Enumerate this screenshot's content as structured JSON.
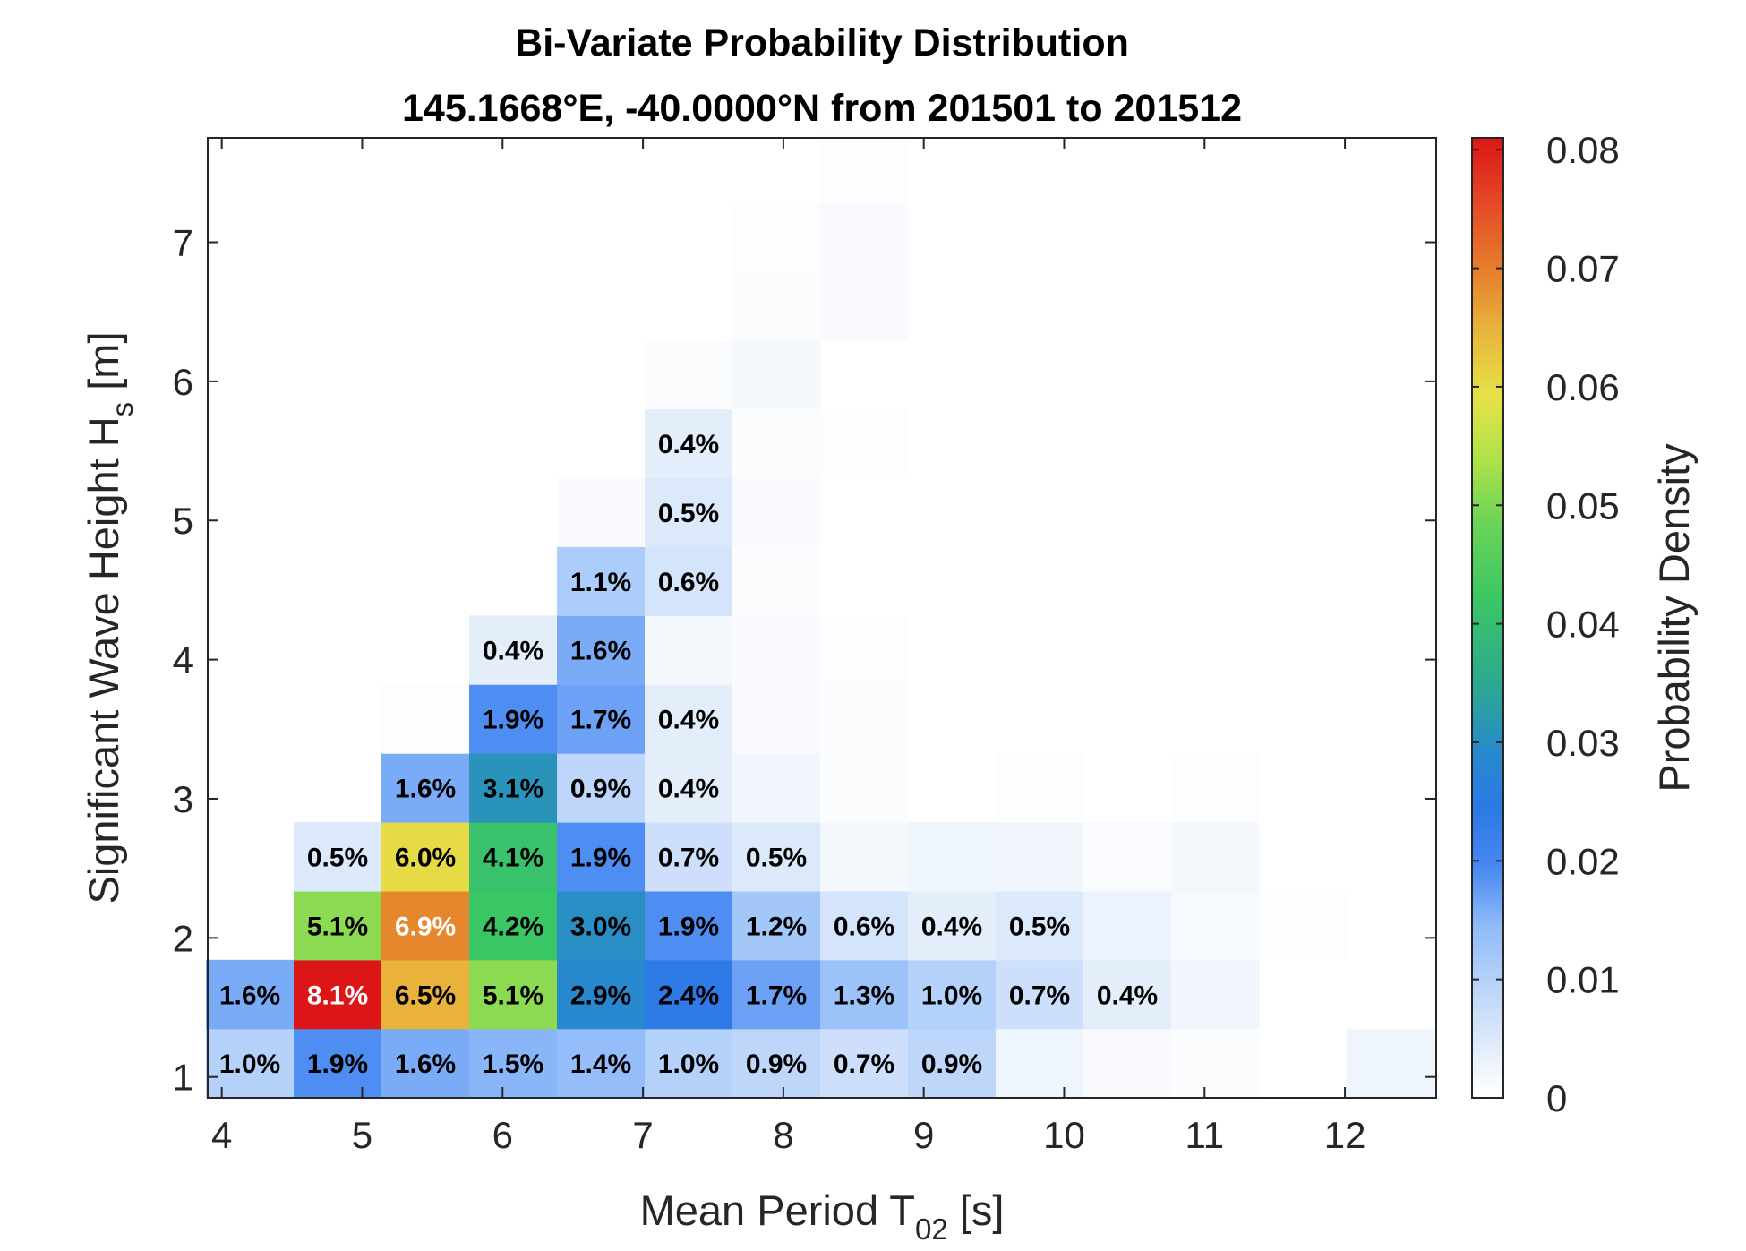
{
  "title_line1": "Bi-Variate Probability Distribution",
  "title_line2": "145.1668°E, -40.0000°N from 201501 to 201512",
  "xlabel_main": "Mean Period T",
  "xlabel_sub": "02",
  "xlabel_unit": " [s]",
  "ylabel_main": "Significant Wave Height H",
  "ylabel_sub": "s",
  "ylabel_unit": " [m]",
  "colorbar_label": "Probability Density",
  "chart_data": {
    "type": "heatmap",
    "title": "Bi-Variate Probability Distribution\n145.1668°E, -40.0000°N from 201501 to 201512",
    "xlabel": "Mean Period T02 [s]",
    "ylabel": "Significant Wave Height Hs [m]",
    "colorbar_label": "Probability Density",
    "xlim": [
      3.9,
      12.65
    ],
    "ylim": [
      0.85,
      7.75
    ],
    "x_ticks": [
      4,
      5,
      6,
      7,
      8,
      9,
      10,
      11,
      12
    ],
    "y_ticks": [
      1,
      2,
      3,
      4,
      5,
      6,
      7
    ],
    "colorbar_ticks": [
      0,
      0.01,
      0.02,
      0.03,
      0.04,
      0.05,
      0.06,
      0.07,
      0.08
    ],
    "colorbar_range": [
      0,
      0.081
    ],
    "x_bin_width": 0.625,
    "y_bin_height": 0.495,
    "x_bin_centers": [
      4.2,
      4.825,
      5.45,
      6.075,
      6.7,
      7.325,
      7.95,
      8.575,
      9.2,
      9.825,
      10.45,
      11.075,
      11.7,
      12.325
    ],
    "y_bin_centers": [
      1.1,
      1.595,
      2.09,
      2.585,
      3.08,
      3.575,
      4.07,
      4.565,
      5.06,
      5.555,
      6.05,
      6.545,
      7.04,
      7.535
    ],
    "cells": [
      {
        "x": 4.2,
        "y": 1.1,
        "value": 0.01,
        "label": "1.0%"
      },
      {
        "x": 4.825,
        "y": 1.1,
        "value": 0.019,
        "label": "1.9%"
      },
      {
        "x": 5.45,
        "y": 1.1,
        "value": 0.016,
        "label": "1.6%"
      },
      {
        "x": 6.075,
        "y": 1.1,
        "value": 0.015,
        "label": "1.5%"
      },
      {
        "x": 6.7,
        "y": 1.1,
        "value": 0.014,
        "label": "1.4%"
      },
      {
        "x": 7.325,
        "y": 1.1,
        "value": 0.01,
        "label": "1.0%"
      },
      {
        "x": 7.95,
        "y": 1.1,
        "value": 0.009,
        "label": "0.9%"
      },
      {
        "x": 8.575,
        "y": 1.1,
        "value": 0.007,
        "label": "0.7%"
      },
      {
        "x": 9.2,
        "y": 1.1,
        "value": 0.009,
        "label": "0.9%"
      },
      {
        "x": 9.825,
        "y": 1.1,
        "value": 0.0025,
        "label": ""
      },
      {
        "x": 10.45,
        "y": 1.1,
        "value": 0.0012,
        "label": ""
      },
      {
        "x": 11.075,
        "y": 1.1,
        "value": 0.0008,
        "label": ""
      },
      {
        "x": 12.325,
        "y": 1.1,
        "value": 0.0025,
        "label": ""
      },
      {
        "x": 4.2,
        "y": 1.595,
        "value": 0.016,
        "label": "1.6%"
      },
      {
        "x": 4.825,
        "y": 1.595,
        "value": 0.081,
        "label": "8.1%"
      },
      {
        "x": 5.45,
        "y": 1.595,
        "value": 0.065,
        "label": "6.5%"
      },
      {
        "x": 6.075,
        "y": 1.595,
        "value": 0.051,
        "label": "5.1%"
      },
      {
        "x": 6.7,
        "y": 1.595,
        "value": 0.029,
        "label": "2.9%"
      },
      {
        "x": 7.325,
        "y": 1.595,
        "value": 0.024,
        "label": "2.4%"
      },
      {
        "x": 7.95,
        "y": 1.595,
        "value": 0.017,
        "label": "1.7%"
      },
      {
        "x": 8.575,
        "y": 1.595,
        "value": 0.013,
        "label": "1.3%"
      },
      {
        "x": 9.2,
        "y": 1.595,
        "value": 0.01,
        "label": "1.0%"
      },
      {
        "x": 9.825,
        "y": 1.595,
        "value": 0.007,
        "label": "0.7%"
      },
      {
        "x": 10.45,
        "y": 1.595,
        "value": 0.004,
        "label": "0.4%"
      },
      {
        "x": 11.075,
        "y": 1.595,
        "value": 0.0022,
        "label": ""
      },
      {
        "x": 4.825,
        "y": 2.09,
        "value": 0.051,
        "label": "5.1%"
      },
      {
        "x": 5.45,
        "y": 2.09,
        "value": 0.069,
        "label": "6.9%"
      },
      {
        "x": 6.075,
        "y": 2.09,
        "value": 0.042,
        "label": "4.2%"
      },
      {
        "x": 6.7,
        "y": 2.09,
        "value": 0.03,
        "label": "3.0%"
      },
      {
        "x": 7.325,
        "y": 2.09,
        "value": 0.019,
        "label": "1.9%"
      },
      {
        "x": 7.95,
        "y": 2.09,
        "value": 0.012,
        "label": "1.2%"
      },
      {
        "x": 8.575,
        "y": 2.09,
        "value": 0.006,
        "label": "0.6%"
      },
      {
        "x": 9.2,
        "y": 2.09,
        "value": 0.004,
        "label": "0.4%"
      },
      {
        "x": 9.825,
        "y": 2.09,
        "value": 0.005,
        "label": "0.5%"
      },
      {
        "x": 10.45,
        "y": 2.09,
        "value": 0.0028,
        "label": ""
      },
      {
        "x": 11.075,
        "y": 2.09,
        "value": 0.0015,
        "label": ""
      },
      {
        "x": 11.7,
        "y": 2.09,
        "value": 0.0004,
        "label": ""
      },
      {
        "x": 4.825,
        "y": 2.585,
        "value": 0.005,
        "label": "0.5%"
      },
      {
        "x": 5.45,
        "y": 2.585,
        "value": 0.06,
        "label": "6.0%"
      },
      {
        "x": 6.075,
        "y": 2.585,
        "value": 0.041,
        "label": "4.1%"
      },
      {
        "x": 6.7,
        "y": 2.585,
        "value": 0.019,
        "label": "1.9%"
      },
      {
        "x": 7.325,
        "y": 2.585,
        "value": 0.007,
        "label": "0.7%"
      },
      {
        "x": 7.95,
        "y": 2.585,
        "value": 0.005,
        "label": "0.5%"
      },
      {
        "x": 8.575,
        "y": 2.585,
        "value": 0.0018,
        "label": ""
      },
      {
        "x": 9.2,
        "y": 2.585,
        "value": 0.0025,
        "label": ""
      },
      {
        "x": 9.825,
        "y": 2.585,
        "value": 0.0022,
        "label": ""
      },
      {
        "x": 10.45,
        "y": 2.585,
        "value": 0.0009,
        "label": ""
      },
      {
        "x": 11.075,
        "y": 2.585,
        "value": 0.0018,
        "label": ""
      },
      {
        "x": 5.45,
        "y": 3.08,
        "value": 0.016,
        "label": "1.6%"
      },
      {
        "x": 6.075,
        "y": 3.08,
        "value": 0.031,
        "label": "3.1%"
      },
      {
        "x": 6.7,
        "y": 3.08,
        "value": 0.009,
        "label": "0.9%"
      },
      {
        "x": 7.325,
        "y": 3.08,
        "value": 0.004,
        "label": "0.4%"
      },
      {
        "x": 7.95,
        "y": 3.08,
        "value": 0.0022,
        "label": ""
      },
      {
        "x": 8.575,
        "y": 3.08,
        "value": 0.0008,
        "label": ""
      },
      {
        "x": 9.825,
        "y": 3.08,
        "value": 0.0006,
        "label": ""
      },
      {
        "x": 11.075,
        "y": 3.08,
        "value": 0.0006,
        "label": ""
      },
      {
        "x": 5.45,
        "y": 3.575,
        "value": 0.0006,
        "label": ""
      },
      {
        "x": 6.075,
        "y": 3.575,
        "value": 0.019,
        "label": "1.9%"
      },
      {
        "x": 6.7,
        "y": 3.575,
        "value": 0.017,
        "label": "1.7%"
      },
      {
        "x": 7.325,
        "y": 3.575,
        "value": 0.004,
        "label": "0.4%"
      },
      {
        "x": 7.95,
        "y": 3.575,
        "value": 0.0012,
        "label": ""
      },
      {
        "x": 8.575,
        "y": 3.575,
        "value": 0.0008,
        "label": ""
      },
      {
        "x": 6.075,
        "y": 4.07,
        "value": 0.004,
        "label": "0.4%"
      },
      {
        "x": 6.7,
        "y": 4.07,
        "value": 0.016,
        "label": "1.6%"
      },
      {
        "x": 7.325,
        "y": 4.07,
        "value": 0.0018,
        "label": ""
      },
      {
        "x": 7.95,
        "y": 4.07,
        "value": 0.0012,
        "label": ""
      },
      {
        "x": 8.575,
        "y": 4.07,
        "value": 0.0004,
        "label": ""
      },
      {
        "x": 6.7,
        "y": 4.565,
        "value": 0.011,
        "label": "1.1%"
      },
      {
        "x": 7.325,
        "y": 4.565,
        "value": 0.006,
        "label": "0.6%"
      },
      {
        "x": 7.95,
        "y": 4.565,
        "value": 0.0008,
        "label": ""
      },
      {
        "x": 6.7,
        "y": 5.06,
        "value": 0.0012,
        "label": ""
      },
      {
        "x": 7.325,
        "y": 5.06,
        "value": 0.005,
        "label": "0.5%"
      },
      {
        "x": 7.95,
        "y": 5.06,
        "value": 0.0012,
        "label": ""
      },
      {
        "x": 7.325,
        "y": 5.555,
        "value": 0.004,
        "label": "0.4%"
      },
      {
        "x": 7.95,
        "y": 5.555,
        "value": 0.0008,
        "label": ""
      },
      {
        "x": 8.575,
        "y": 5.555,
        "value": 0.0004,
        "label": ""
      },
      {
        "x": 7.325,
        "y": 6.05,
        "value": 0.0008,
        "label": ""
      },
      {
        "x": 7.95,
        "y": 6.05,
        "value": 0.0016,
        "label": ""
      },
      {
        "x": 7.95,
        "y": 6.545,
        "value": 0.0008,
        "label": ""
      },
      {
        "x": 8.575,
        "y": 6.545,
        "value": 0.0012,
        "label": ""
      },
      {
        "x": 7.95,
        "y": 7.04,
        "value": 0.0004,
        "label": ""
      },
      {
        "x": 8.575,
        "y": 7.04,
        "value": 0.0012,
        "label": ""
      },
      {
        "x": 8.575,
        "y": 7.535,
        "value": 0.0006,
        "label": ""
      }
    ]
  }
}
